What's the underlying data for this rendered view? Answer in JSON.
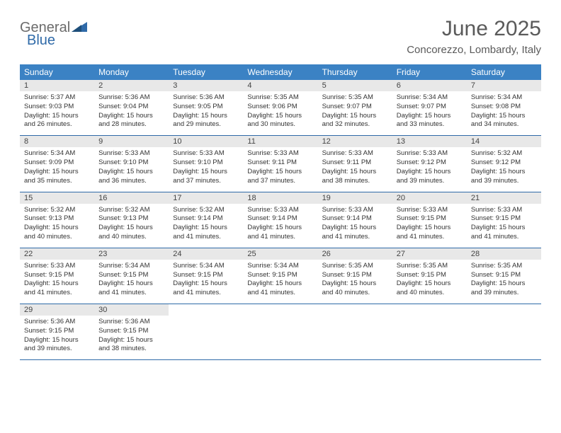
{
  "brand": {
    "word1": "General",
    "word2": "Blue"
  },
  "title": "June 2025",
  "location": "Concorezzo, Lombardy, Italy",
  "colors": {
    "header_bg": "#3b82c4",
    "header_text": "#ffffff",
    "daynum_bg": "#e8e8e8",
    "week_border": "#2f6aa8",
    "logo_gray": "#6b6b6b",
    "logo_blue": "#2f6aa8",
    "title_color": "#5a5a5a",
    "body_text": "#333333",
    "page_bg": "#ffffff"
  },
  "weekdays": [
    "Sunday",
    "Monday",
    "Tuesday",
    "Wednesday",
    "Thursday",
    "Friday",
    "Saturday"
  ],
  "days": [
    {
      "n": "1",
      "sr": "5:37 AM",
      "ss": "9:03 PM",
      "dl": "15 hours and 26 minutes."
    },
    {
      "n": "2",
      "sr": "5:36 AM",
      "ss": "9:04 PM",
      "dl": "15 hours and 28 minutes."
    },
    {
      "n": "3",
      "sr": "5:36 AM",
      "ss": "9:05 PM",
      "dl": "15 hours and 29 minutes."
    },
    {
      "n": "4",
      "sr": "5:35 AM",
      "ss": "9:06 PM",
      "dl": "15 hours and 30 minutes."
    },
    {
      "n": "5",
      "sr": "5:35 AM",
      "ss": "9:07 PM",
      "dl": "15 hours and 32 minutes."
    },
    {
      "n": "6",
      "sr": "5:34 AM",
      "ss": "9:07 PM",
      "dl": "15 hours and 33 minutes."
    },
    {
      "n": "7",
      "sr": "5:34 AM",
      "ss": "9:08 PM",
      "dl": "15 hours and 34 minutes."
    },
    {
      "n": "8",
      "sr": "5:34 AM",
      "ss": "9:09 PM",
      "dl": "15 hours and 35 minutes."
    },
    {
      "n": "9",
      "sr": "5:33 AM",
      "ss": "9:10 PM",
      "dl": "15 hours and 36 minutes."
    },
    {
      "n": "10",
      "sr": "5:33 AM",
      "ss": "9:10 PM",
      "dl": "15 hours and 37 minutes."
    },
    {
      "n": "11",
      "sr": "5:33 AM",
      "ss": "9:11 PM",
      "dl": "15 hours and 37 minutes."
    },
    {
      "n": "12",
      "sr": "5:33 AM",
      "ss": "9:11 PM",
      "dl": "15 hours and 38 minutes."
    },
    {
      "n": "13",
      "sr": "5:33 AM",
      "ss": "9:12 PM",
      "dl": "15 hours and 39 minutes."
    },
    {
      "n": "14",
      "sr": "5:32 AM",
      "ss": "9:12 PM",
      "dl": "15 hours and 39 minutes."
    },
    {
      "n": "15",
      "sr": "5:32 AM",
      "ss": "9:13 PM",
      "dl": "15 hours and 40 minutes."
    },
    {
      "n": "16",
      "sr": "5:32 AM",
      "ss": "9:13 PM",
      "dl": "15 hours and 40 minutes."
    },
    {
      "n": "17",
      "sr": "5:32 AM",
      "ss": "9:14 PM",
      "dl": "15 hours and 41 minutes."
    },
    {
      "n": "18",
      "sr": "5:33 AM",
      "ss": "9:14 PM",
      "dl": "15 hours and 41 minutes."
    },
    {
      "n": "19",
      "sr": "5:33 AM",
      "ss": "9:14 PM",
      "dl": "15 hours and 41 minutes."
    },
    {
      "n": "20",
      "sr": "5:33 AM",
      "ss": "9:15 PM",
      "dl": "15 hours and 41 minutes."
    },
    {
      "n": "21",
      "sr": "5:33 AM",
      "ss": "9:15 PM",
      "dl": "15 hours and 41 minutes."
    },
    {
      "n": "22",
      "sr": "5:33 AM",
      "ss": "9:15 PM",
      "dl": "15 hours and 41 minutes."
    },
    {
      "n": "23",
      "sr": "5:34 AM",
      "ss": "9:15 PM",
      "dl": "15 hours and 41 minutes."
    },
    {
      "n": "24",
      "sr": "5:34 AM",
      "ss": "9:15 PM",
      "dl": "15 hours and 41 minutes."
    },
    {
      "n": "25",
      "sr": "5:34 AM",
      "ss": "9:15 PM",
      "dl": "15 hours and 41 minutes."
    },
    {
      "n": "26",
      "sr": "5:35 AM",
      "ss": "9:15 PM",
      "dl": "15 hours and 40 minutes."
    },
    {
      "n": "27",
      "sr": "5:35 AM",
      "ss": "9:15 PM",
      "dl": "15 hours and 40 minutes."
    },
    {
      "n": "28",
      "sr": "5:35 AM",
      "ss": "9:15 PM",
      "dl": "15 hours and 39 minutes."
    },
    {
      "n": "29",
      "sr": "5:36 AM",
      "ss": "9:15 PM",
      "dl": "15 hours and 39 minutes."
    },
    {
      "n": "30",
      "sr": "5:36 AM",
      "ss": "9:15 PM",
      "dl": "15 hours and 38 minutes."
    }
  ],
  "labels": {
    "sunrise": "Sunrise:",
    "sunset": "Sunset:",
    "daylight": "Daylight:"
  }
}
